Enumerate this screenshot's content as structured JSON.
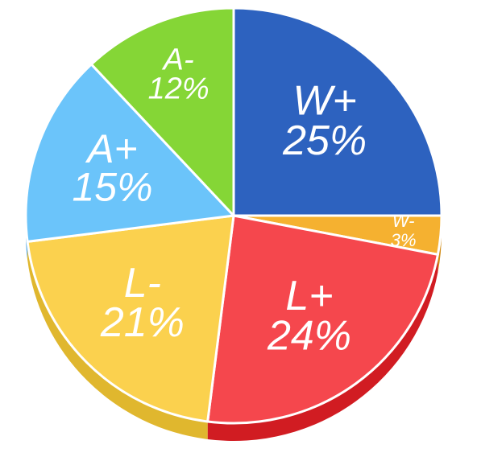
{
  "chart_data": {
    "type": "pie",
    "title": "",
    "slices": [
      {
        "label": "W+",
        "value": 25,
        "value_label": "25%",
        "color": "#2D62BF",
        "side_color": "#1E4A96"
      },
      {
        "label": "W-",
        "value": 3,
        "value_label": "3%",
        "color": "#F5B130",
        "side_color": "#D18A12"
      },
      {
        "label": "L+",
        "value": 24,
        "value_label": "24%",
        "color": "#F5474D",
        "side_color": "#D11C22"
      },
      {
        "label": "L-",
        "value": 21,
        "value_label": "21%",
        "color": "#FBD14E",
        "side_color": "#E0B72E"
      },
      {
        "label": "A+",
        "value": 15,
        "value_label": "15%",
        "color": "#6BC4FA",
        "side_color": "#3D9BE0"
      },
      {
        "label": "A-",
        "value": 12,
        "value_label": "12%",
        "color": "#85D636",
        "side_color": "#5FAE1D"
      }
    ],
    "start_angle": "12 o'clock",
    "direction": "clockwise",
    "style": "3d-tilted",
    "legend": "none"
  }
}
